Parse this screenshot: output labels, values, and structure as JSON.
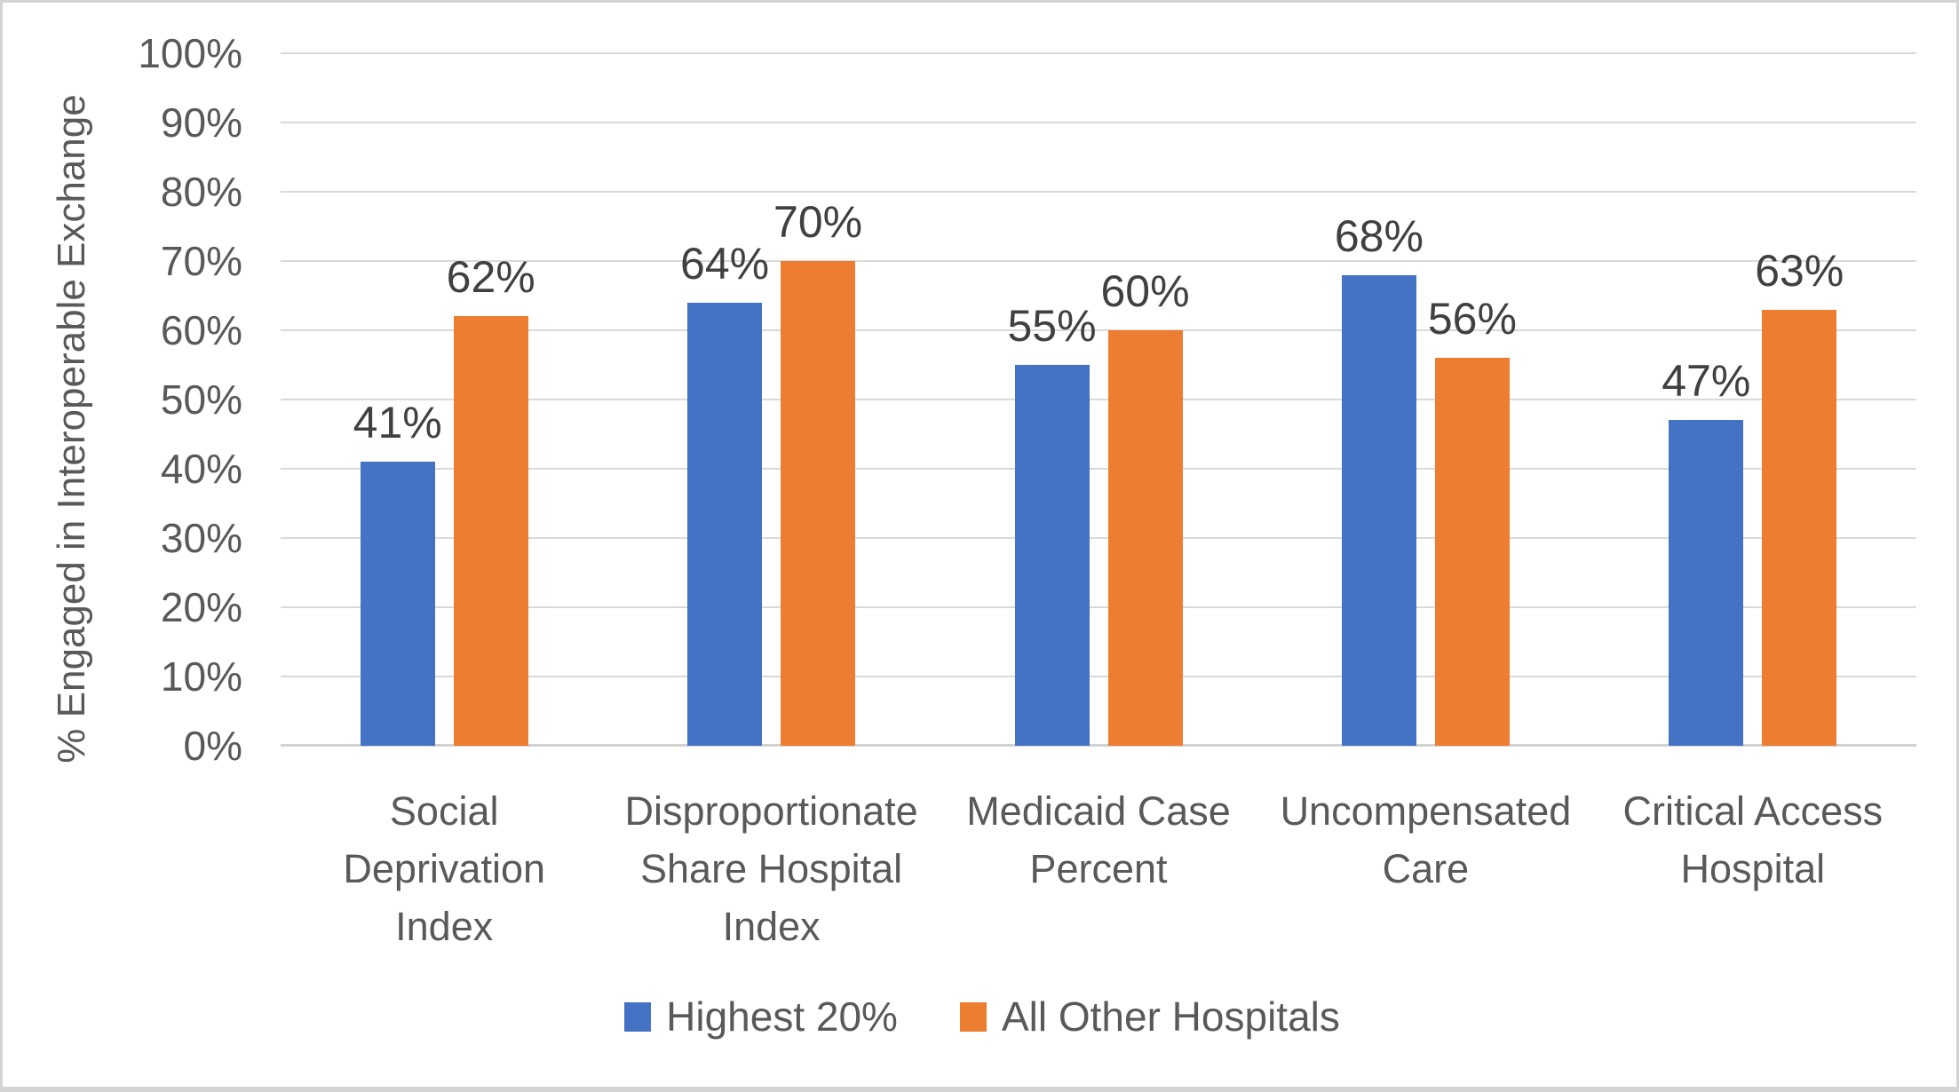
{
  "chart_data": {
    "type": "bar",
    "title": "",
    "xlabel": "",
    "ylabel": "% Engaged in Interoperable Exchange",
    "ylim": [
      0,
      100
    ],
    "y_tick_step": 10,
    "y_tick_labels": [
      "0%",
      "10%",
      "20%",
      "30%",
      "40%",
      "50%",
      "60%",
      "70%",
      "80%",
      "90%",
      "100%"
    ],
    "grid": true,
    "legend_position": "bottom",
    "categories": [
      {
        "label": "Social Deprivation Index",
        "lines": [
          "Social",
          "Deprivation",
          "Index"
        ]
      },
      {
        "label": "Disproportionate Share Hospital Index",
        "lines": [
          "Disproportionate",
          "Share Hospital",
          "Index"
        ]
      },
      {
        "label": "Medicaid Case Percent",
        "lines": [
          "Medicaid Case",
          "Percent"
        ]
      },
      {
        "label": "Uncompensated Care",
        "lines": [
          "Uncompensated",
          "Care"
        ]
      },
      {
        "label": "Critical Access Hospital",
        "lines": [
          "Critical Access",
          "Hospital"
        ]
      }
    ],
    "series": [
      {
        "name": "Highest 20%",
        "color": "#4472C4",
        "values": [
          41,
          64,
          55,
          68,
          47
        ],
        "labels": [
          "41%",
          "64%",
          "55%",
          "68%",
          "47%"
        ]
      },
      {
        "name": "All Other Hospitals",
        "color": "#ED7D31",
        "values": [
          62,
          70,
          60,
          56,
          63
        ],
        "labels": [
          "62%",
          "70%",
          "60%",
          "56%",
          "63%"
        ]
      }
    ]
  },
  "style": {
    "gridline_color": "#D9D9D9",
    "axis_text_color": "#595959",
    "data_label_color": "#404040",
    "series_blue": "#4472C4",
    "series_orange": "#ED7D31",
    "background": "#FFFFFF",
    "border_color": "#D3D3D3"
  }
}
